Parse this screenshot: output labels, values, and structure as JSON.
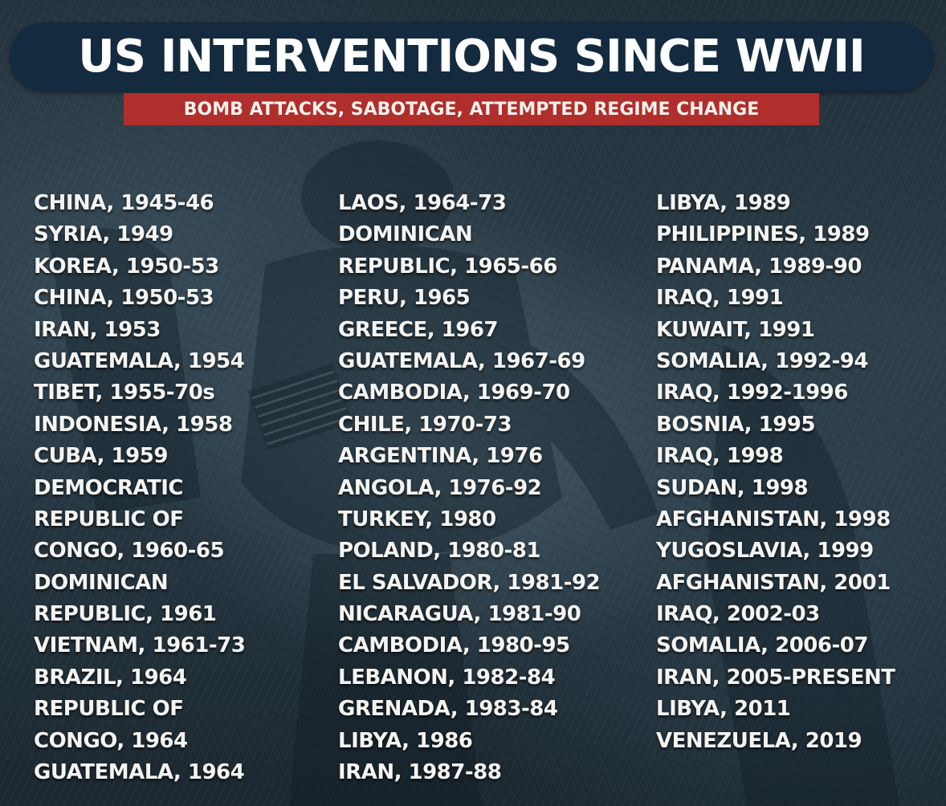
{
  "header": {
    "title": "US INTERVENTIONS SINCE WWII",
    "subtitle": "BOMB ATTACKS, SABOTAGE, ATTEMPTED REGIME CHANGE"
  },
  "colors": {
    "title_pill": "#132a3f",
    "subtitle_band": "#b02e2c",
    "text": "#f4f4f2",
    "background": "#26353f"
  },
  "columns": [
    [
      "CHINA, 1945-46",
      "SYRIA, 1949",
      "KOREA, 1950-53",
      "CHINA, 1950-53",
      "IRAN, 1953",
      "GUATEMALA, 1954",
      "TIBET, 1955-70s",
      "INDONESIA, 1958",
      "CUBA, 1959",
      "DEMOCRATIC",
      "REPUBLIC OF",
      "CONGO, 1960-65",
      "DOMINICAN",
      "REPUBLIC, 1961",
      "VIETNAM, 1961-73",
      "BRAZIL, 1964",
      "REPUBLIC OF",
      "CONGO, 1964",
      "GUATEMALA, 1964"
    ],
    [
      "LAOS, 1964-73",
      "DOMINICAN",
      "REPUBLIC, 1965-66",
      "PERU, 1965",
      "GREECE, 1967",
      "GUATEMALA, 1967-69",
      "CAMBODIA, 1969-70",
      "CHILE, 1970-73",
      "ARGENTINA, 1976",
      "ANGOLA, 1976-92",
      "TURKEY, 1980",
      "POLAND, 1980-81",
      "EL SALVADOR, 1981-92",
      "NICARAGUA, 1981-90",
      "CAMBODIA, 1980-95",
      "LEBANON, 1982-84",
      "GRENADA, 1983-84",
      "LIBYA, 1986",
      "IRAN, 1987-88"
    ],
    [
      "LIBYA, 1989",
      "PHILIPPINES, 1989",
      "PANAMA, 1989-90",
      "IRAQ, 1991",
      "KUWAIT, 1991",
      "SOMALIA, 1992-94",
      "IRAQ, 1992-1996",
      "BOSNIA, 1995",
      "IRAQ, 1998",
      "SUDAN, 1998",
      "AFGHANISTAN, 1998",
      "YUGOSLAVIA, 1999",
      "AFGHANISTAN, 2001",
      "IRAQ, 2002-03",
      "SOMALIA, 2006-07",
      "IRAN, 2005-PRESENT",
      "LIBYA, 2011",
      "VENEZUELA, 2019"
    ]
  ]
}
